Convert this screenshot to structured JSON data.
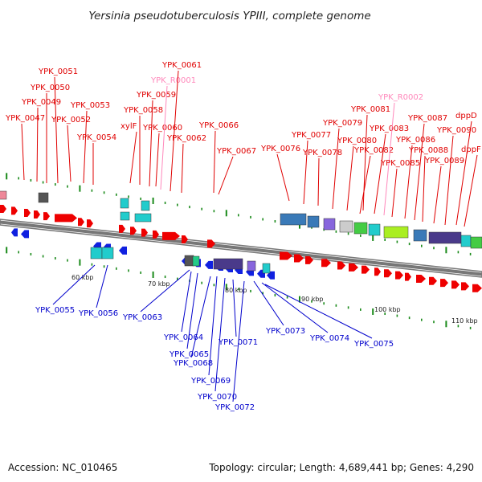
{
  "title": "Yersinia pseudotuberculosis YPIII, complete genome",
  "footer": {
    "accession": "Accession: NC_010465",
    "summary": "Topology: circular; Length: 4,689,441 bp; Genes: 4,290"
  },
  "colors": {
    "forward_label": "#e00000",
    "reverse_label": "#0000cc",
    "rna_label": "#ff88bb",
    "forward_gene": "#ee0000",
    "reverse_gene": "#1020e0",
    "backbone": "#777777",
    "tick": "#1a8a1a"
  },
  "scale_ticks": [
    "60 kbp",
    "70 kbp",
    "80 kbp",
    "90 kbp",
    "100 kbp",
    "110 kbp"
  ],
  "forward_labels": [
    "YPK_0047",
    "YPK_0049",
    "YPK_0050",
    "YPK_0051",
    "YPK_0052",
    "YPK_0053",
    "YPK_0054",
    "xylF",
    "YPK_0058",
    "YPK_0059",
    "YPK_0060",
    "YPK_R0001",
    "YPK_0061",
    "YPK_0062",
    "YPK_0066",
    "YPK_0067",
    "YPK_0076",
    "YPK_0077",
    "YPK_0078",
    "YPK_0079",
    "YPK_0080",
    "YPK_0081",
    "YPK_0082",
    "YPK_0083",
    "YPK_R0002",
    "YPK_0085",
    "YPK_0086",
    "YPK_0087",
    "YPK_0088",
    "YPK_0089",
    "YPK_0090",
    "dppD",
    "dppF"
  ],
  "reverse_labels": [
    "YPK_0055",
    "YPK_0056",
    "YPK_0063",
    "YPK_0064",
    "YPK_0065",
    "YPK_0068",
    "YPK_0069",
    "YPK_0070",
    "YPK_0071",
    "YPK_0072",
    "YPK_0073",
    "YPK_0074",
    "YPK_0075"
  ]
}
